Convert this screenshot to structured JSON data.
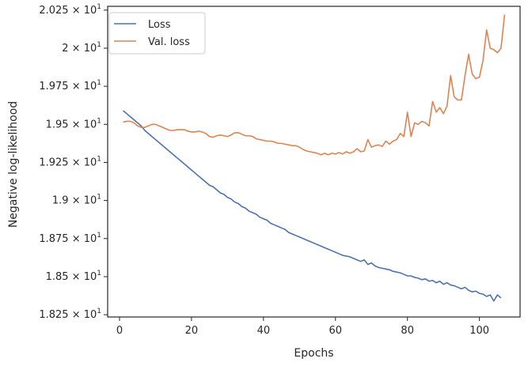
{
  "chart_data": {
    "type": "line",
    "xlabel": "Epochs",
    "ylabel": "Negative log-likelihood",
    "xlim": [
      -3.3,
      111.3
    ],
    "ylim": [
      18.235,
      20.275
    ],
    "x_ticks": [
      0,
      20,
      40,
      60,
      80,
      100
    ],
    "y_ticks": [
      {
        "value": 18.25,
        "mantissa": "1.825",
        "exp": "1"
      },
      {
        "value": 18.5,
        "mantissa": "1.85",
        "exp": "1"
      },
      {
        "value": 18.75,
        "mantissa": "1.875",
        "exp": "1"
      },
      {
        "value": 19.0,
        "mantissa": "1.9",
        "exp": "1"
      },
      {
        "value": 19.25,
        "mantissa": "1.925",
        "exp": "1"
      },
      {
        "value": 19.5,
        "mantissa": "1.95",
        "exp": "1"
      },
      {
        "value": 19.75,
        "mantissa": "1.975",
        "exp": "1"
      },
      {
        "value": 20.0,
        "mantissa": "2",
        "exp": "1"
      },
      {
        "value": 20.25,
        "mantissa": "2.025",
        "exp": "1"
      }
    ],
    "tick_times": "×",
    "tick_base": "10",
    "grid": false,
    "legend_position": "top-left",
    "colors": {
      "loss": "#4c72b0",
      "val_loss": "#dd8452"
    },
    "series": [
      {
        "name": "Loss",
        "x_start": 1,
        "values": [
          19.59,
          19.57,
          19.55,
          19.53,
          19.51,
          19.49,
          19.46,
          19.44,
          19.42,
          19.4,
          19.38,
          19.36,
          19.34,
          19.32,
          19.3,
          19.28,
          19.26,
          19.24,
          19.22,
          19.2,
          19.18,
          19.16,
          19.14,
          19.12,
          19.1,
          19.09,
          19.07,
          19.05,
          19.04,
          19.02,
          19.01,
          18.99,
          18.98,
          18.96,
          18.95,
          18.93,
          18.92,
          18.91,
          18.89,
          18.88,
          18.87,
          18.85,
          18.84,
          18.83,
          18.82,
          18.81,
          18.79,
          18.78,
          18.77,
          18.76,
          18.75,
          18.74,
          18.73,
          18.72,
          18.71,
          18.7,
          18.69,
          18.68,
          18.67,
          18.66,
          18.65,
          18.64,
          18.635,
          18.63,
          18.62,
          18.61,
          18.6,
          18.61,
          18.58,
          18.59,
          18.57,
          18.56,
          18.555,
          18.55,
          18.545,
          18.535,
          18.53,
          18.525,
          18.515,
          18.505,
          18.505,
          18.495,
          18.49,
          18.48,
          18.485,
          18.47,
          18.475,
          18.46,
          18.47,
          18.45,
          18.46,
          18.445,
          18.44,
          18.43,
          18.42,
          18.43,
          18.41,
          18.4,
          18.405,
          18.39,
          18.385,
          18.37,
          18.38,
          18.34,
          18.38,
          18.36
        ]
      },
      {
        "name": "Val. loss",
        "x_start": 1,
        "values": [
          19.515,
          19.52,
          19.52,
          19.51,
          19.49,
          19.48,
          19.48,
          19.49,
          19.5,
          19.5,
          19.49,
          19.48,
          19.47,
          19.46,
          19.46,
          19.465,
          19.465,
          19.465,
          19.455,
          19.45,
          19.45,
          19.455,
          19.45,
          19.44,
          19.42,
          19.415,
          19.425,
          19.43,
          19.425,
          19.42,
          19.43,
          19.445,
          19.445,
          19.435,
          19.425,
          19.425,
          19.42,
          19.405,
          19.4,
          19.395,
          19.39,
          19.39,
          19.385,
          19.375,
          19.375,
          19.37,
          19.365,
          19.36,
          19.36,
          19.35,
          19.335,
          19.325,
          19.32,
          19.315,
          19.31,
          19.3,
          19.31,
          19.3,
          19.31,
          19.305,
          19.315,
          19.305,
          19.32,
          19.31,
          19.32,
          19.34,
          19.32,
          19.325,
          19.4,
          19.35,
          19.36,
          19.365,
          19.355,
          19.39,
          19.37,
          19.39,
          19.4,
          19.44,
          19.42,
          19.58,
          19.42,
          19.51,
          19.5,
          19.52,
          19.51,
          19.49,
          19.65,
          19.58,
          19.61,
          19.57,
          19.62,
          19.82,
          19.68,
          19.66,
          19.66,
          19.82,
          19.96,
          19.83,
          19.8,
          19.81,
          19.92,
          20.12,
          20.0,
          19.99,
          19.97,
          20.0,
          20.22
        ]
      }
    ]
  }
}
